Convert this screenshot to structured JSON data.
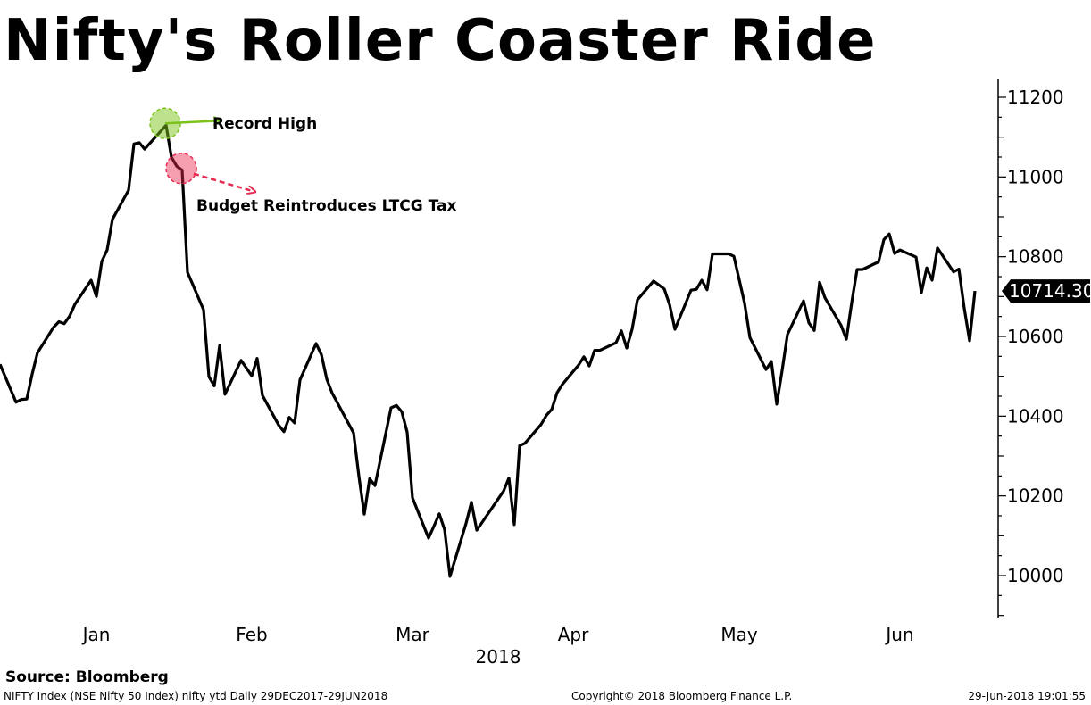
{
  "title": "Nifty's Roller Coaster Ride",
  "source": "Source: Bloomberg",
  "footer": {
    "left": "NIFTY Index (NSE Nifty 50 Index) nifty ytd  Daily 29DEC2017-29JUN2018",
    "center": "Copyright© 2018 Bloomberg Finance L.P.",
    "right": "29-Jun-2018 19:01:55"
  },
  "colors": {
    "line": "#000000",
    "record_high": "#7bc31b",
    "budget": "#e8284f"
  },
  "chart_data": {
    "type": "line",
    "title": "Nifty's Roller Coaster Ride",
    "xlabel": "2018",
    "ylabel": "",
    "ylim": [
      9900,
      11230
    ],
    "yticks": [
      10000,
      10200,
      10400,
      10600,
      10800,
      11000,
      11200
    ],
    "y_axis_side": "right",
    "grid": false,
    "legend": "none",
    "x_months": [
      "Jan",
      "Feb",
      "Mar",
      "Apr",
      "May",
      "Jun"
    ],
    "last_value_label": "10714.30",
    "series": [
      {
        "name": "",
        "x": [
          "2017-12-29",
          "2018-01-01",
          "2018-01-02",
          "2018-01-03",
          "2018-01-04",
          "2018-01-05",
          "2018-01-08",
          "2018-01-09",
          "2018-01-10",
          "2018-01-11",
          "2018-01-12",
          "2018-01-15",
          "2018-01-16",
          "2018-01-17",
          "2018-01-18",
          "2018-01-19",
          "2018-01-22",
          "2018-01-23",
          "2018-01-24",
          "2018-01-25",
          "2018-01-29",
          "2018-01-30",
          "2018-01-31",
          "2018-02-01",
          "2018-02-02",
          "2018-02-05",
          "2018-02-06",
          "2018-02-07",
          "2018-02-08",
          "2018-02-09",
          "2018-02-12",
          "2018-02-14",
          "2018-02-15",
          "2018-02-16",
          "2018-02-19",
          "2018-02-20",
          "2018-02-21",
          "2018-02-22",
          "2018-02-23",
          "2018-02-26",
          "2018-02-27",
          "2018-02-28",
          "2018-03-01",
          "2018-03-05",
          "2018-03-06",
          "2018-03-07",
          "2018-03-08",
          "2018-03-09",
          "2018-03-12",
          "2018-03-13",
          "2018-03-14",
          "2018-03-15",
          "2018-03-16",
          "2018-03-19",
          "2018-03-20",
          "2018-03-21",
          "2018-03-22",
          "2018-03-23",
          "2018-03-26",
          "2018-03-27",
          "2018-03-28",
          "2018-04-02",
          "2018-04-03",
          "2018-04-04",
          "2018-04-05",
          "2018-04-06",
          "2018-04-09",
          "2018-04-10",
          "2018-04-11",
          "2018-04-12",
          "2018-04-13",
          "2018-04-16",
          "2018-04-17",
          "2018-04-18",
          "2018-04-19",
          "2018-04-20",
          "2018-04-23",
          "2018-04-24",
          "2018-04-25",
          "2018-04-26",
          "2018-04-27",
          "2018-04-30",
          "2018-05-02",
          "2018-05-03",
          "2018-05-04",
          "2018-05-07",
          "2018-05-08",
          "2018-05-09",
          "2018-05-10",
          "2018-05-11",
          "2018-05-14",
          "2018-05-15",
          "2018-05-16",
          "2018-05-17",
          "2018-05-18",
          "2018-05-21",
          "2018-05-22",
          "2018-05-23",
          "2018-05-24",
          "2018-05-25",
          "2018-05-28",
          "2018-05-29",
          "2018-05-30",
          "2018-05-31",
          "2018-06-01",
          "2018-06-04",
          "2018-06-05",
          "2018-06-06",
          "2018-06-07",
          "2018-06-08",
          "2018-06-11",
          "2018-06-12",
          "2018-06-13",
          "2018-06-14",
          "2018-06-15",
          "2018-06-18",
          "2018-06-19",
          "2018-06-20",
          "2018-06-21",
          "2018-06-22",
          "2018-06-25",
          "2018-06-26",
          "2018-06-27",
          "2018-06-28",
          "2018-06-29"
        ],
        "values": [
          10530,
          10435,
          10442,
          10443,
          10505,
          10559,
          10623,
          10637,
          10632,
          10651,
          10681,
          10741,
          10700,
          10788,
          10817,
          10894,
          10967,
          11083,
          11086,
          11070,
          11130,
          11050,
          11027,
          11017,
          10761,
          10667,
          10499,
          10476,
          10577,
          10455,
          10540,
          10501,
          10545,
          10452,
          10378,
          10361,
          10397,
          10383,
          10491,
          10582,
          10554,
          10493,
          10458,
          10358,
          10249,
          10154,
          10243,
          10226,
          10421,
          10427,
          10411,
          10360,
          10195,
          10094,
          10124,
          10155,
          10115,
          9998,
          10131,
          10184,
          10114,
          10212,
          10245,
          10128,
          10326,
          10332,
          10379,
          10402,
          10417,
          10459,
          10480,
          10528,
          10549,
          10526,
          10565,
          10565,
          10584,
          10614,
          10571,
          10618,
          10692,
          10739,
          10719,
          10680,
          10618,
          10716,
          10718,
          10741,
          10717,
          10807,
          10807,
          10801,
          10742,
          10683,
          10597,
          10517,
          10537,
          10430,
          10514,
          10605,
          10689,
          10634,
          10615,
          10736,
          10697,
          10628,
          10593,
          10685,
          10768,
          10768,
          10787,
          10843,
          10857,
          10808,
          10817,
          10799,
          10710,
          10772,
          10741,
          10822,
          10762,
          10769,
          10671,
          10589,
          10714
        ]
      }
    ],
    "annotations": [
      {
        "label": "Record High",
        "x": "2018-01-29",
        "y": 11130
      },
      {
        "label": "Budget Reintroduces LTCG Tax",
        "x": "2018-02-01",
        "y": 11017
      }
    ]
  }
}
